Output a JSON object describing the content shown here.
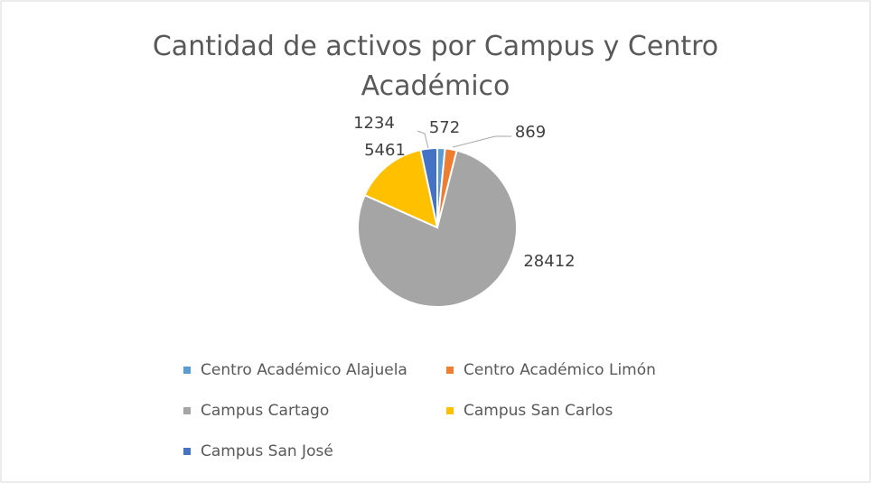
{
  "chart_data": {
    "type": "pie",
    "title": "Cantidad de activos por Campus y Centro Académico",
    "categories": [
      "Centro Académico Alajuela",
      "Centro Académico Limón",
      "Campus Cartago",
      "Campus San Carlos",
      "Campus San José"
    ],
    "values": [
      572,
      869,
      28412,
      5461,
      1234
    ],
    "colors": [
      "#5b9bd5",
      "#ed7d31",
      "#a5a5a5",
      "#ffc000",
      "#4472c4"
    ]
  }
}
